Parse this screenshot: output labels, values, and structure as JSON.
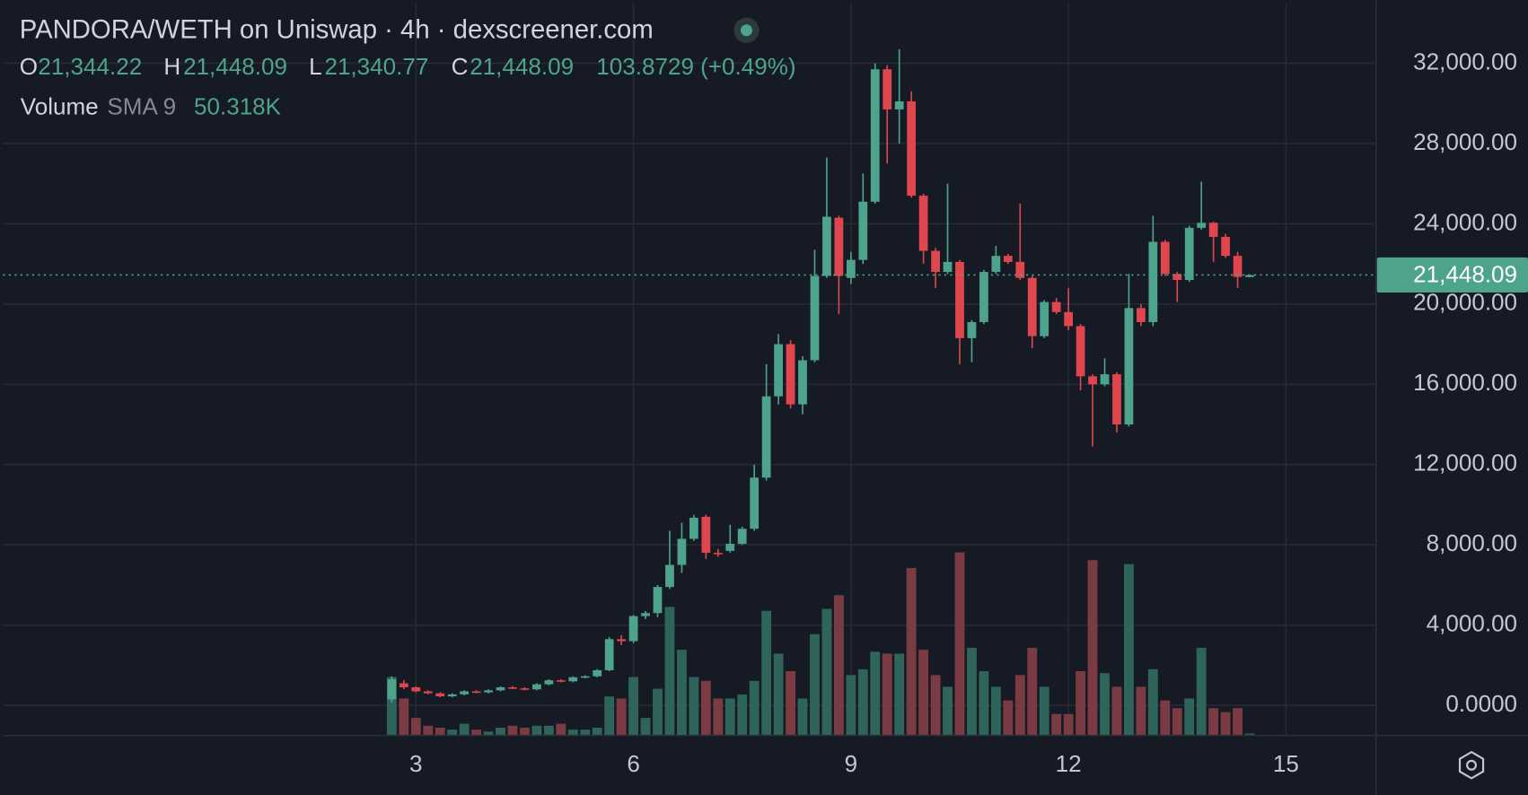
{
  "chart_data": {
    "type": "candlestick",
    "title": "PANDORA/WETH on Uniswap · 4h · dexscreener.com",
    "legend": {
      "items": [
        {
          "label": "O",
          "text": "21,344.22"
        },
        {
          "label": "H",
          "text": "21,448.09"
        },
        {
          "label": "L",
          "text": "21,340.77"
        },
        {
          "label": "C",
          "text": "21,448.09"
        }
      ],
      "change": "103.8729 (+0.49%)"
    },
    "volume_legend": {
      "label": "Volume",
      "indicator": "SMA 9",
      "value": "50.318K"
    },
    "last_price": {
      "value": 21448.09,
      "label": "21,448.09"
    },
    "up_color": "#4ea38c",
    "down_color": "#e0464e",
    "volume_up_color": "#2f645a",
    "volume_down_color": "#7a3b43",
    "grid": true,
    "xlim": [
      -32.18,
      81.45
    ],
    "xticks": [
      {
        "value": 2,
        "label": "3"
      },
      {
        "value": 20,
        "label": "6"
      },
      {
        "value": 38,
        "label": "9"
      },
      {
        "value": 56,
        "label": "12"
      },
      {
        "value": 74,
        "label": "15"
      }
    ],
    "ylim": [
      -1500,
      35000
    ],
    "yticks": [
      {
        "value": 0,
        "label": "0.0000"
      },
      {
        "value": 4000,
        "label": "4,000.00"
      },
      {
        "value": 8000,
        "label": "8,000.00"
      },
      {
        "value": 12000,
        "label": "12,000.00"
      },
      {
        "value": 16000,
        "label": "16,000.00"
      },
      {
        "value": 20000,
        "label": "20,000.00"
      },
      {
        "value": 24000,
        "label": "24,000.00"
      },
      {
        "value": 28000,
        "label": "28,000.00"
      },
      {
        "value": 32000,
        "label": "32,000.00"
      }
    ],
    "y2lim": [
      0,
      752
    ],
    "open": [
      300,
      1100,
      900,
      700,
      600,
      450,
      550,
      700,
      650,
      750,
      900,
      850,
      800,
      1050,
      1250,
      1200,
      1400,
      1450,
      1750,
      3300,
      3200,
      4450,
      4600,
      5900,
      7000,
      8300,
      9400,
      7600,
      7700,
      8050,
      8800,
      11350,
      15400,
      18000,
      15000,
      17200,
      21400,
      24300,
      21300,
      22200,
      25100,
      31700,
      29700,
      30100,
      25400,
      22650,
      21600,
      22100,
      18300,
      19100,
      21600,
      22400,
      22100,
      21300,
      18400,
      20100,
      19600,
      18900,
      16400,
      16000,
      16500,
      14000,
      19800,
      19100,
      23100,
      21500,
      21200,
      23800,
      24050,
      23350,
      22400,
      21344.22
    ],
    "high": [
      1450,
      1250,
      950,
      750,
      650,
      600,
      750,
      750,
      800,
      950,
      950,
      900,
      1100,
      1300,
      1300,
      1450,
      1500,
      1800,
      3400,
      3500,
      4500,
      4700,
      6000,
      8700,
      9100,
      9500,
      9500,
      7800,
      9000,
      8900,
      12000,
      17000,
      18500,
      18200,
      17400,
      22700,
      27300,
      24400,
      22600,
      26500,
      32000,
      31900,
      32700,
      30600,
      25500,
      22800,
      26000,
      22200,
      19200,
      21700,
      22900,
      22500,
      25000,
      21400,
      20200,
      20300,
      20800,
      19000,
      16500,
      17300,
      16600,
      21500,
      20000,
      24400,
      23200,
      21600,
      23900,
      26100,
      24100,
      23500,
      22600,
      21448.09
    ],
    "low": [
      150,
      800,
      650,
      550,
      400,
      400,
      500,
      600,
      600,
      700,
      800,
      750,
      750,
      1000,
      1150,
      1150,
      1350,
      1400,
      1700,
      3000,
      3100,
      4300,
      4400,
      5800,
      6600,
      8200,
      7300,
      7400,
      7600,
      8000,
      8700,
      11200,
      15000,
      14800,
      14500,
      17100,
      21300,
      19500,
      21000,
      22000,
      25000,
      27000,
      28000,
      25300,
      22000,
      20800,
      21500,
      17000,
      17100,
      19000,
      21500,
      22000,
      21200,
      17800,
      18300,
      19500,
      18700,
      15700,
      12900,
      15900,
      13600,
      13900,
      18900,
      18900,
      21400,
      20100,
      21100,
      23700,
      22100,
      22300,
      20800,
      21340.77
    ],
    "close": [
      1300,
      900,
      700,
      600,
      450,
      550,
      700,
      650,
      750,
      900,
      850,
      800,
      1050,
      1250,
      1200,
      1400,
      1450,
      1750,
      3300,
      3200,
      4450,
      4600,
      5900,
      7000,
      8300,
      9350,
      7600,
      7550,
      8050,
      8800,
      11350,
      15400,
      18000,
      15000,
      17200,
      21400,
      24350,
      21400,
      22200,
      25100,
      31700,
      29700,
      30100,
      25400,
      22650,
      21600,
      22100,
      18300,
      19100,
      21600,
      22400,
      22100,
      21300,
      18400,
      20100,
      19600,
      18900,
      16400,
      16000,
      16500,
      14000,
      19800,
      19100,
      23100,
      21500,
      21200,
      23800,
      24050,
      23350,
      22400,
      21350,
      21448.09
    ],
    "volume": [
      60,
      38,
      18,
      10,
      8,
      6,
      12,
      6,
      4,
      8,
      10,
      8,
      10,
      10,
      12,
      6,
      6,
      8,
      40,
      38,
      60,
      18,
      48,
      132,
      88,
      60,
      56,
      38,
      38,
      42,
      56,
      128,
      84,
      66,
      38,
      104,
      130,
      144,
      62,
      68,
      86,
      84,
      84,
      172,
      88,
      62,
      50,
      188,
      90,
      66,
      50,
      36,
      62,
      90,
      50,
      22,
      22,
      66,
      180,
      64,
      50,
      176,
      50,
      68,
      36,
      28,
      38,
      90,
      28,
      24,
      28,
      2
    ]
  }
}
